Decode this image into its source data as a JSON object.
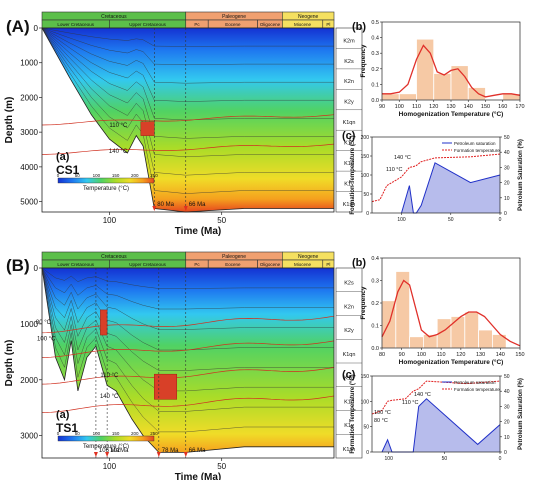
{
  "colors": {
    "cretaceous": "#5cbf4a",
    "paleogene": "#f0a070",
    "neogene": "#f5e060",
    "kde_line": "#e0302a",
    "hist_bar": "#f6c9a5",
    "petroleum_line": "#2030c8",
    "temp_line": "#e02020",
    "isotherm": "#d03020"
  },
  "colorbar": {
    "label": "Temperature (°C)",
    "ticks": [
      "0",
      "50",
      "100",
      "150",
      "200",
      "250"
    ],
    "colors": [
      "#1432d2",
      "#1e78f0",
      "#32c8f0",
      "#50d264",
      "#aadc28",
      "#f0dc28",
      "#f5a01e",
      "#e6461e"
    ]
  },
  "stratigraphy": {
    "periods": [
      "Cretaceous",
      "Paleogene",
      "Neogene"
    ],
    "epochs": [
      "Lower Cretaceous",
      "Upper Cretaceous",
      "Pc",
      "Eocene",
      "Oligocene",
      "Miocene",
      "Pl"
    ]
  },
  "panels": [
    {
      "panel_label": "(A)",
      "well_label": "(a)",
      "well": "CS1",
      "burial": {
        "xlabel": "Time (Ma)",
        "ylabel": "Depth (m)",
        "x_ticks": [
          "100",
          "50"
        ],
        "y_ticks": [
          "0",
          "1000",
          "2000",
          "3000",
          "4000",
          "5000"
        ],
        "ylim": [
          0,
          5300
        ],
        "formations": [
          "K2m",
          "K2s",
          "K2n",
          "K2y",
          "K1qn",
          "K1q",
          "K1d",
          "K1y",
          "K1sh"
        ],
        "isotherm_labels": [
          "110 °C",
          "140 °C"
        ],
        "event_labels": [
          "80 Ma",
          "66 Ma"
        ]
      },
      "chart_data": [
        {
          "type": "bar",
          "panel": "(b)",
          "title": "",
          "xlabel": "Homogenization Temperature (°C)",
          "ylabel": "Frequency",
          "x_ticks": [
            "90",
            "100",
            "110",
            "120",
            "130",
            "140",
            "150",
            "160",
            "170"
          ],
          "y_ticks": [
            "0.0",
            "0.1",
            "0.2",
            "0.3",
            "0.4",
            "0.5"
          ],
          "xlim": [
            90,
            170
          ],
          "ylim": [
            0,
            0.5
          ],
          "bin_edges": [
            90,
            100,
            110,
            120,
            130,
            140,
            150,
            160,
            170
          ],
          "values": [
            0.04,
            0.04,
            0.39,
            0.17,
            0.22,
            0.08,
            0.0,
            0.04
          ],
          "kde_x": [
            90,
            95,
            100,
            105,
            110,
            114,
            118,
            122,
            126,
            130,
            134,
            138,
            142,
            146,
            150,
            155,
            160,
            165,
            170
          ],
          "kde_y": [
            0.04,
            0.04,
            0.05,
            0.1,
            0.26,
            0.35,
            0.3,
            0.18,
            0.16,
            0.19,
            0.2,
            0.15,
            0.08,
            0.04,
            0.02,
            0.03,
            0.04,
            0.04,
            0.03
          ]
        },
        {
          "type": "line",
          "panel": "(c)",
          "ylabel": "Formation Temperature (°C)",
          "y2label": "Petroleum Saturation (%)",
          "x_ticks": [
            "100",
            "50",
            "0"
          ],
          "y_ticks": [
            "0",
            "50",
            "100",
            "150",
            "200"
          ],
          "y2_ticks": [
            "0",
            "10",
            "20",
            "30",
            "40",
            "50"
          ],
          "xlim": [
            130,
            0
          ],
          "ylim": [
            0,
            200
          ],
          "y2lim": [
            0,
            50
          ],
          "legend": [
            "Petroleum saturation",
            "Formation temperature"
          ],
          "annotations": [
            "140 °C",
            "110 °C"
          ],
          "series": [
            {
              "name": "Petroleum saturation",
              "axis": "right",
              "x": [
                100,
                92,
                88,
                85,
                80,
                66,
                30,
                0
              ],
              "y": [
                0,
                18,
                0,
                0,
                5,
                33,
                20,
                25
              ]
            },
            {
              "name": "Formation temperature",
              "axis": "left",
              "x": [
                130,
                122,
                115,
                100,
                92,
                88,
                85,
                80,
                66,
                30,
                0
              ],
              "y": [
                30,
                35,
                72,
                95,
                120,
                122,
                125,
                135,
                145,
                148,
                155
              ]
            }
          ]
        }
      ]
    },
    {
      "panel_label": "(B)",
      "well_label": "(a)",
      "well": "TS1",
      "burial": {
        "xlabel": "Time (Ma)",
        "ylabel": "Depth (m)",
        "x_ticks": [
          "100",
          "50"
        ],
        "y_ticks": [
          "0",
          "1000",
          "2000",
          "3000"
        ],
        "ylim": [
          0,
          3400
        ],
        "formations": [
          "K2s",
          "K2n",
          "K2y",
          "K1qn",
          "K1q",
          "K1d",
          "K1y",
          "K1sh"
        ],
        "isotherm_labels": [
          "80 °C",
          "100 °C",
          "110 °C",
          "140 °C"
        ],
        "event_labels": [
          "106 Ma",
          "101Ma",
          "78 Ma",
          "66 Ma"
        ]
      },
      "chart_data": [
        {
          "type": "bar",
          "panel": "(b)",
          "title": "",
          "xlabel": "Homogenization Temperature (°C)",
          "ylabel": "Frequency",
          "x_ticks": [
            "80",
            "90",
            "100",
            "110",
            "120",
            "130",
            "140",
            "150"
          ],
          "y_ticks": [
            "0.0",
            "0.1",
            "0.2",
            "0.3",
            "0.4"
          ],
          "xlim": [
            80,
            150
          ],
          "ylim": [
            0,
            0.4
          ],
          "bin_edges": [
            80,
            87,
            94,
            101,
            108,
            115,
            122,
            129,
            136,
            143
          ],
          "values": [
            0.21,
            0.34,
            0.05,
            0.06,
            0.13,
            0.14,
            0.16,
            0.08,
            0.06
          ],
          "kde_x": [
            80,
            84,
            88,
            91,
            94,
            97,
            100,
            104,
            108,
            112,
            116,
            120,
            124,
            128,
            132,
            136,
            140,
            145,
            150
          ],
          "kde_y": [
            0.05,
            0.12,
            0.25,
            0.3,
            0.28,
            0.18,
            0.08,
            0.05,
            0.06,
            0.08,
            0.11,
            0.14,
            0.16,
            0.16,
            0.14,
            0.1,
            0.06,
            0.03,
            0.01
          ]
        },
        {
          "type": "line",
          "panel": "(c)",
          "ylabel": "Formation Temperature (°C)",
          "y2label": "Petroleum Saturation (%)",
          "x_ticks": [
            "100",
            "50",
            "0"
          ],
          "y_ticks": [
            "0",
            "50",
            "100",
            "150"
          ],
          "y2_ticks": [
            "0",
            "10",
            "20",
            "30",
            "40",
            "50"
          ],
          "xlim": [
            115,
            0
          ],
          "ylim": [
            0,
            150
          ],
          "y2lim": [
            0,
            50
          ],
          "legend": [
            "Petroleum saturation",
            "Formation temperature"
          ],
          "annotations": [
            "100 °C",
            "140 °C",
            "110 °C",
            "80 °C"
          ],
          "series": [
            {
              "name": "Petroleum saturation",
              "axis": "right",
              "x": [
                106,
                101,
                97,
                78,
                73,
                66,
                20,
                0
              ],
              "y": [
                0,
                8,
                0,
                0,
                30,
                35,
                5,
                18
              ]
            },
            {
              "name": "Formation temperature",
              "axis": "left",
              "x": [
                115,
                106,
                101,
                97,
                85,
                78,
                73,
                66,
                30,
                0
              ],
              "y": [
                75,
                82,
                100,
                102,
                105,
                120,
                125,
                140,
                135,
                140
              ]
            }
          ]
        }
      ]
    }
  ]
}
